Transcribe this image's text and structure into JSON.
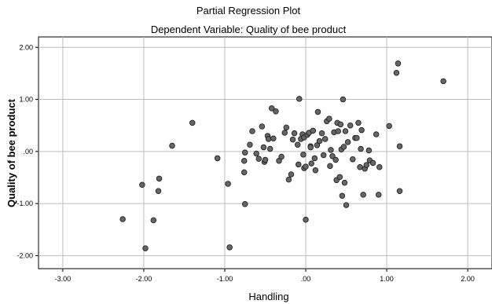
{
  "chart_data": {
    "type": "scatter",
    "title": "Partial Regression Plot",
    "subtitle": "Dependent Variable: Quality of bee product",
    "xlabel": "Handling",
    "ylabel": "Quality of bee product",
    "xlim": [
      -3.3,
      2.3
    ],
    "ylim": [
      -2.25,
      2.2
    ],
    "x_ticks": [
      -3,
      -2,
      -1,
      0,
      1,
      2
    ],
    "x_tick_labels": [
      "-3.00",
      "-2.00",
      "-1.00",
      ".00",
      "1.00",
      "2.00"
    ],
    "y_ticks": [
      -2,
      -1,
      0,
      1,
      2
    ],
    "y_tick_labels": [
      "-2.00",
      "-1.00",
      ".00",
      "1.00",
      "2.00"
    ],
    "grid": true,
    "marker_color": "#666666",
    "marker_edge_color": "#222222",
    "points": [
      [
        -2.26,
        -1.3
      ],
      [
        -2.02,
        -0.64
      ],
      [
        -1.98,
        -1.86
      ],
      [
        -1.88,
        -1.32
      ],
      [
        -1.81,
        -0.52
      ],
      [
        -1.82,
        -0.76
      ],
      [
        -1.65,
        0.11
      ],
      [
        -1.4,
        0.55
      ],
      [
        -1.09,
        -0.13
      ],
      [
        -0.96,
        -0.62
      ],
      [
        -0.94,
        -1.84
      ],
      [
        -0.75,
        -0.02
      ],
      [
        -0.76,
        -0.18
      ],
      [
        -0.76,
        -0.4
      ],
      [
        -0.75,
        -1.01
      ],
      [
        -0.69,
        0.13
      ],
      [
        -0.66,
        0.39
      ],
      [
        -0.61,
        -0.04
      ],
      [
        -0.58,
        -0.14
      ],
      [
        -0.54,
        0.48
      ],
      [
        -0.52,
        0.08
      ],
      [
        -0.51,
        -0.2
      ],
      [
        -0.5,
        -0.16
      ],
      [
        -0.47,
        0.3
      ],
      [
        -0.46,
        0.24
      ],
      [
        -0.44,
        0.05
      ],
      [
        -0.42,
        0.83
      ],
      [
        -0.4,
        0.25
      ],
      [
        -0.37,
        0.77
      ],
      [
        -0.33,
        -0.18
      ],
      [
        -0.3,
        -0.1
      ],
      [
        -0.26,
        0.36
      ],
      [
        -0.24,
        0.46
      ],
      [
        -0.21,
        -0.54
      ],
      [
        -0.18,
        -0.44
      ],
      [
        -0.16,
        0.23
      ],
      [
        -0.14,
        0.35
      ],
      [
        -0.1,
        0.13
      ],
      [
        -0.09,
        -0.25
      ],
      [
        -0.08,
        1.01
      ],
      [
        -0.06,
        0.24
      ],
      [
        -0.04,
        0.33
      ],
      [
        -0.03,
        -0.06
      ],
      [
        -0.02,
        0.27
      ],
      [
        -0.02,
        -0.32
      ],
      [
        0.0,
        -1.31
      ],
      [
        0.0,
        -0.29
      ],
      [
        0.02,
        0.32
      ],
      [
        0.04,
        0.36
      ],
      [
        0.06,
        0.1
      ],
      [
        0.06,
        0.08
      ],
      [
        0.07,
        -0.23
      ],
      [
        0.09,
        0.4
      ],
      [
        0.11,
        -0.13
      ],
      [
        0.12,
        -0.36
      ],
      [
        0.14,
        0.12
      ],
      [
        0.15,
        0.76
      ],
      [
        0.17,
        0.2
      ],
      [
        0.2,
        0.35
      ],
      [
        0.22,
        -0.07
      ],
      [
        0.24,
        0.24
      ],
      [
        0.26,
        0.58
      ],
      [
        0.29,
        0.63
      ],
      [
        0.3,
        -0.28
      ],
      [
        0.31,
        0.03
      ],
      [
        0.33,
        -0.09
      ],
      [
        0.35,
        0.37
      ],
      [
        0.37,
        -0.16
      ],
      [
        0.38,
        -0.55
      ],
      [
        0.39,
        0.55
      ],
      [
        0.4,
        0.39
      ],
      [
        0.42,
        -0.49
      ],
      [
        0.43,
        0.52
      ],
      [
        0.44,
        0.04
      ],
      [
        0.45,
        -0.85
      ],
      [
        0.46,
        1.0
      ],
      [
        0.47,
        0.09
      ],
      [
        0.48,
        -0.6
      ],
      [
        0.49,
        0.39
      ],
      [
        0.5,
        -1.03
      ],
      [
        0.52,
        0.18
      ],
      [
        0.55,
        0.5
      ],
      [
        0.58,
        -0.15
      ],
      [
        0.61,
        0.26
      ],
      [
        0.63,
        0.26
      ],
      [
        0.65,
        0.55
      ],
      [
        0.67,
        -0.3
      ],
      [
        0.68,
        0.05
      ],
      [
        0.69,
        0.41
      ],
      [
        0.71,
        -0.83
      ],
      [
        0.73,
        -0.33
      ],
      [
        0.75,
        -0.26
      ],
      [
        0.78,
        0.02
      ],
      [
        0.79,
        -0.17
      ],
      [
        0.83,
        -0.22
      ],
      [
        0.87,
        0.33
      ],
      [
        0.9,
        -0.83
      ],
      [
        0.91,
        -0.3
      ],
      [
        1.03,
        0.49
      ],
      [
        1.12,
        1.51
      ],
      [
        1.14,
        1.69
      ],
      [
        1.16,
        0.1
      ],
      [
        1.16,
        -0.76
      ],
      [
        1.7,
        1.35
      ]
    ]
  }
}
